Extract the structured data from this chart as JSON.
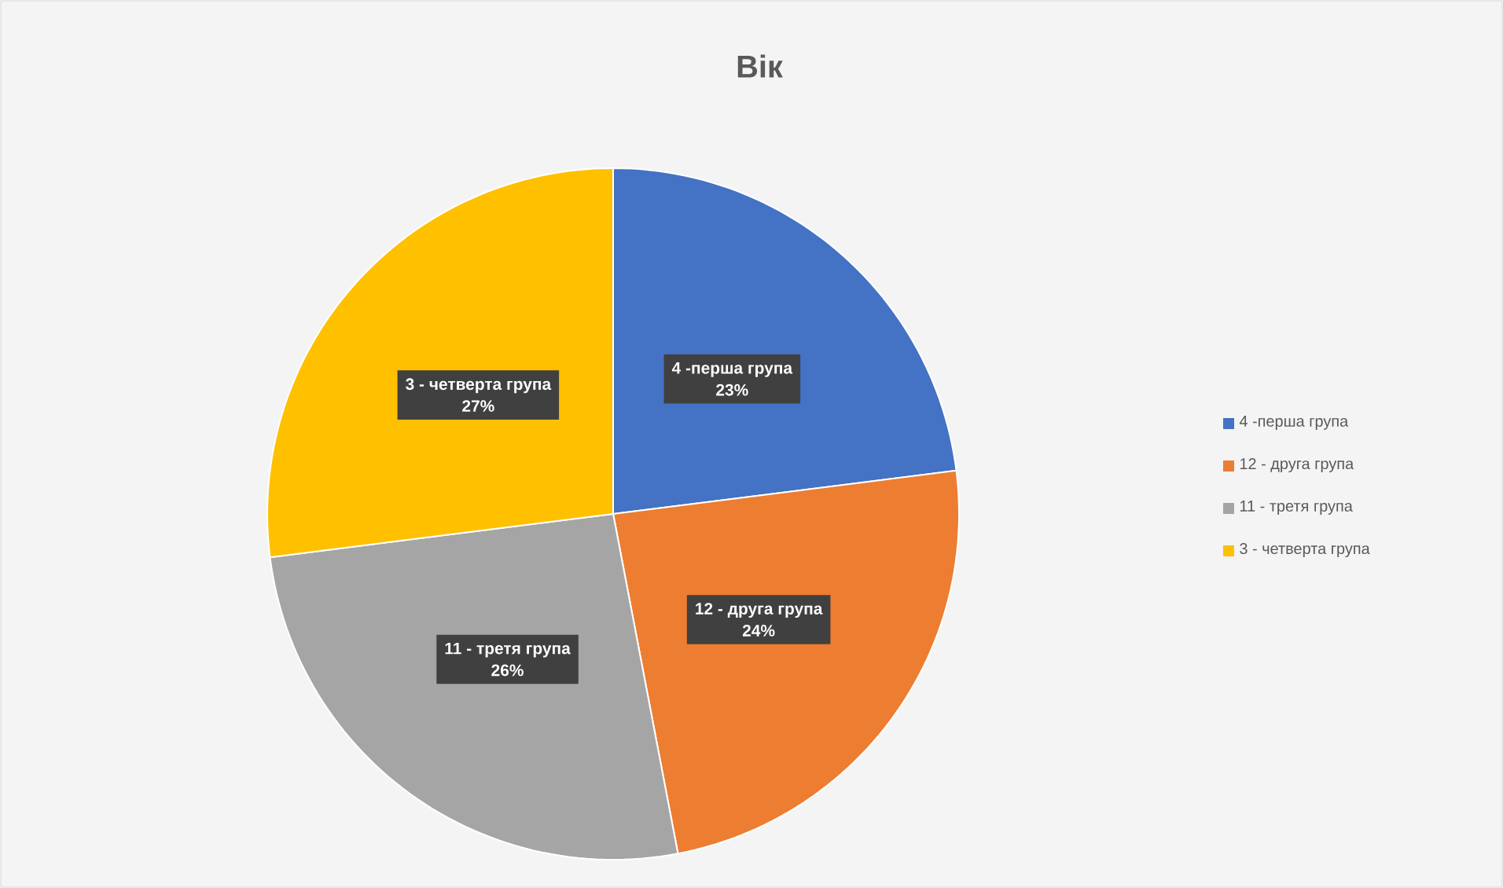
{
  "chart_data": {
    "type": "pie",
    "title": "Вік",
    "categories": [
      "4 -перша група",
      "12 - друга група",
      "11 - третя група",
      "3 - четверта група"
    ],
    "values": [
      23,
      24,
      26,
      27
    ],
    "value_labels": [
      "23%",
      "24%",
      "26%",
      "27%"
    ],
    "colors": [
      "#4472c4",
      "#ed7d31",
      "#a5a5a5",
      "#ffc000"
    ],
    "legend": "right"
  }
}
